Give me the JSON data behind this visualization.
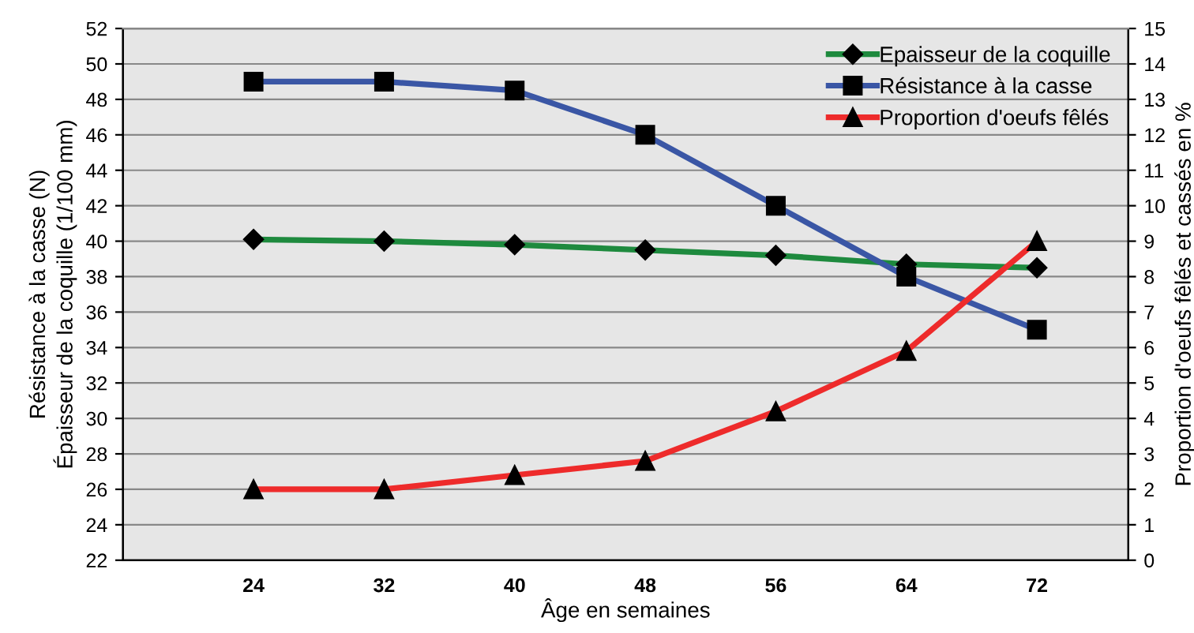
{
  "chart_data": {
    "type": "line",
    "xlabel": "Âge en semaines",
    "ylabel": "Résistance à la casse (N)\nÉpaisseur de la coquille (1/100 mm)",
    "y2label": "Proportion d'oeufs fêlés et cassés en %",
    "categories": [
      "24",
      "32",
      "40",
      "48",
      "56",
      "64",
      "72"
    ],
    "series": [
      {
        "name": "Epaisseur de la coquille",
        "color": "#1e8a3e",
        "marker": "diamond",
        "values": [
          40.1,
          40.0,
          39.8,
          39.5,
          39.2,
          38.7,
          38.5
        ]
      },
      {
        "name": "Résistance à la casse",
        "color": "#3a56a5",
        "marker": "square",
        "values": [
          49,
          49,
          48.5,
          46,
          42,
          38,
          35
        ]
      },
      {
        "name": "Proportion d'oeufs fêlés",
        "color": "#ee2b2b",
        "marker": "triangle",
        "axis": "y2",
        "values": [
          2,
          2,
          2.4,
          2.8,
          4.2,
          5.9,
          9
        ]
      }
    ],
    "ylim": [
      22,
      52
    ],
    "yticks": [
      22,
      24,
      26,
      28,
      30,
      32,
      34,
      36,
      38,
      40,
      42,
      44,
      46,
      48,
      50,
      52
    ],
    "y2lim": [
      0,
      15
    ],
    "y2ticks": [
      0,
      1,
      2,
      3,
      4,
      5,
      6,
      7,
      8,
      9,
      10,
      11,
      12,
      13,
      14,
      15
    ],
    "grid": "y",
    "legend": "top right",
    "line_style": "solid"
  }
}
